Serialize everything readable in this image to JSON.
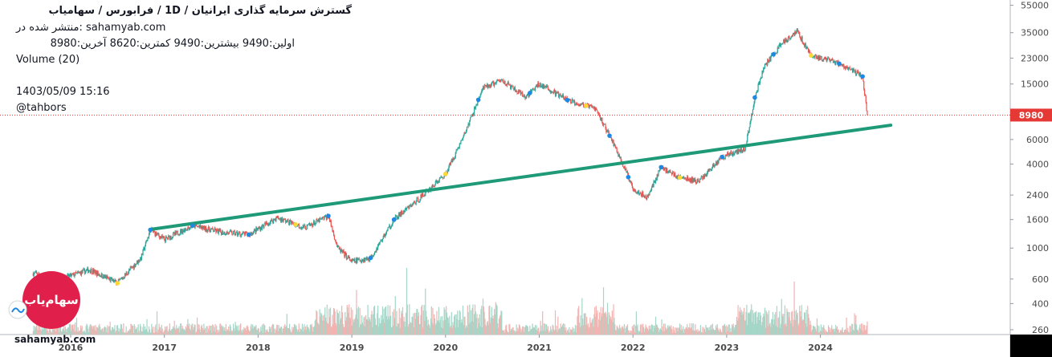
{
  "header": {
    "title": "گسترش سرمایه گذاری ایرانیان / 1D / فرابورس / سهامیاب",
    "published": "منتشر شده در: sahamyab.com",
    "ohlc": "اولین:9490  بیشترین:9490  کمترین:8620  آخرین:8980",
    "volume_label": "Volume (20)",
    "datetime": "1403/05/09 15:16",
    "user": "@tahbors"
  },
  "footer": {
    "site": "sahamyab.com",
    "logo_text": "سهام‌یاب"
  },
  "colors": {
    "up": "#26a69a",
    "down": "#ef5350",
    "trendline": "#1e9a78",
    "price_badge": "#e53935",
    "price_line": "#e53935",
    "marker_blue": "#1e88e5",
    "marker_yellow": "#fdd835",
    "logo_red": "#e0204a"
  },
  "chart_data": {
    "type": "candlestick",
    "scale": "log",
    "x_ticks": [
      "2016",
      "2017",
      "2018",
      "2019",
      "2020",
      "2021",
      "2022",
      "2023",
      "2024"
    ],
    "y_ticks": [
      260,
      400,
      600,
      1000,
      1600,
      2400,
      4000,
      6000,
      15000,
      23000,
      35000,
      55000
    ],
    "last_price": 8980,
    "last_price_label": "8980",
    "ylim": [
      240,
      60000
    ],
    "approx_close": [
      {
        "x": 2015.6,
        "y": 660
      },
      {
        "x": 2015.9,
        "y": 600
      },
      {
        "x": 2016.2,
        "y": 700
      },
      {
        "x": 2016.5,
        "y": 560
      },
      {
        "x": 2016.75,
        "y": 850
      },
      {
        "x": 2016.85,
        "y": 1350
      },
      {
        "x": 2017.0,
        "y": 1150
      },
      {
        "x": 2017.3,
        "y": 1450
      },
      {
        "x": 2017.6,
        "y": 1300
      },
      {
        "x": 2017.9,
        "y": 1250
      },
      {
        "x": 2018.2,
        "y": 1650
      },
      {
        "x": 2018.5,
        "y": 1400
      },
      {
        "x": 2018.75,
        "y": 1700
      },
      {
        "x": 2018.85,
        "y": 1000
      },
      {
        "x": 2019.0,
        "y": 800
      },
      {
        "x": 2019.2,
        "y": 850
      },
      {
        "x": 2019.45,
        "y": 1600
      },
      {
        "x": 2019.7,
        "y": 2200
      },
      {
        "x": 2020.0,
        "y": 3400
      },
      {
        "x": 2020.2,
        "y": 6500
      },
      {
        "x": 2020.4,
        "y": 14000
      },
      {
        "x": 2020.6,
        "y": 16000
      },
      {
        "x": 2020.85,
        "y": 12000
      },
      {
        "x": 2021.0,
        "y": 15000
      },
      {
        "x": 2021.3,
        "y": 11500
      },
      {
        "x": 2021.6,
        "y": 10000
      },
      {
        "x": 2021.8,
        "y": 5500
      },
      {
        "x": 2022.0,
        "y": 2700
      },
      {
        "x": 2022.15,
        "y": 2300
      },
      {
        "x": 2022.3,
        "y": 3800
      },
      {
        "x": 2022.5,
        "y": 3200
      },
      {
        "x": 2022.7,
        "y": 3000
      },
      {
        "x": 2022.95,
        "y": 4500
      },
      {
        "x": 2023.2,
        "y": 5200
      },
      {
        "x": 2023.3,
        "y": 12000
      },
      {
        "x": 2023.4,
        "y": 20000
      },
      {
        "x": 2023.6,
        "y": 30000
      },
      {
        "x": 2023.75,
        "y": 36000
      },
      {
        "x": 2023.9,
        "y": 24000
      },
      {
        "x": 2024.2,
        "y": 21000
      },
      {
        "x": 2024.45,
        "y": 17000
      },
      {
        "x": 2024.5,
        "y": 8980
      }
    ],
    "trendline": [
      {
        "x": 2016.85,
        "y": 1360
      },
      {
        "x": 2024.75,
        "y": 7600
      }
    ]
  }
}
